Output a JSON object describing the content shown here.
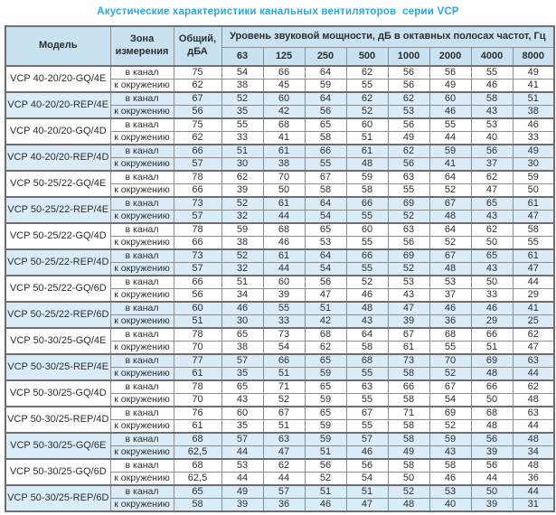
{
  "title": "Акустические характеристики канальных вентиляторов  серии VCP",
  "colors": {
    "title_text": "#29a8df",
    "header_bg": "#c8e2f2",
    "shaded_row_bg": "#d9ecf8",
    "border": "#6e6e6e",
    "cell_text": "#2e2e2e"
  },
  "table": {
    "headers": {
      "model": "Модель",
      "zone": "Зона\nизмерения",
      "total": "Общий,\nдБА",
      "octave": "Уровень звуковой мощности, дБ в октавных полосах частот, Гц",
      "frequencies": [
        "63",
        "125",
        "250",
        "500",
        "1000",
        "2000",
        "4000",
        "8000"
      ]
    },
    "models": [
      {
        "name": "VCP 40-20/20-GQ/4E",
        "shaded": false,
        "rows": [
          {
            "zone": "в канал",
            "total": "75",
            "levels": [
              "54",
              "66",
              "64",
              "62",
              "56",
              "56",
              "55",
              "49"
            ]
          },
          {
            "zone": "к окружению",
            "total": "62",
            "levels": [
              "38",
              "45",
              "59",
              "55",
              "56",
              "49",
              "46",
              "41"
            ]
          }
        ]
      },
      {
        "name": "VCP 40-20/20-REP/4E",
        "shaded": true,
        "rows": [
          {
            "zone": "в канал",
            "total": "67",
            "levels": [
              "52",
              "60",
              "64",
              "62",
              "62",
              "60",
              "58",
              "51"
            ]
          },
          {
            "zone": "к окружению",
            "total": "56",
            "levels": [
              "35",
              "42",
              "56",
              "52",
              "53",
              "46",
              "43",
              "38"
            ]
          }
        ]
      },
      {
        "name": "VCP 40-20/20-GQ/4D",
        "shaded": false,
        "rows": [
          {
            "zone": "в канал",
            "total": "75",
            "levels": [
              "55",
              "68",
              "65",
              "60",
              "56",
              "55",
              "53",
              "46"
            ]
          },
          {
            "zone": "к окружению",
            "total": "62",
            "levels": [
              "33",
              "41",
              "58",
              "51",
              "49",
              "44",
              "40",
              "33"
            ]
          }
        ]
      },
      {
        "name": "VCP 40-20/20-REP/4D",
        "shaded": true,
        "rows": [
          {
            "zone": "в канал",
            "total": "66",
            "levels": [
              "51",
              "61",
              "66",
              "61",
              "62",
              "59",
              "56",
              "49"
            ]
          },
          {
            "zone": "к окружению",
            "total": "57",
            "levels": [
              "30",
              "38",
              "55",
              "48",
              "56",
              "41",
              "37",
              "30"
            ]
          }
        ]
      },
      {
        "name": "VCP 50-25/22-GQ/4E",
        "shaded": false,
        "rows": [
          {
            "zone": "в канал",
            "total": "78",
            "levels": [
              "62",
              "70",
              "67",
              "59",
              "63",
              "64",
              "62",
              "59"
            ]
          },
          {
            "zone": "к окружению",
            "total": "66",
            "levels": [
              "39",
              "50",
              "58",
              "58",
              "55",
              "52",
              "47",
              "50"
            ]
          }
        ]
      },
      {
        "name": "VCP 50-25/22-REP/4E",
        "shaded": true,
        "rows": [
          {
            "zone": "в канал",
            "total": "73",
            "levels": [
              "52",
              "61",
              "64",
              "66",
              "69",
              "67",
              "65",
              "61"
            ]
          },
          {
            "zone": "к окружению",
            "total": "57",
            "levels": [
              "32",
              "44",
              "54",
              "55",
              "52",
              "48",
              "43",
              "47"
            ]
          }
        ]
      },
      {
        "name": "VCP 50-25/22-GQ/4D",
        "shaded": false,
        "rows": [
          {
            "zone": "в канал",
            "total": "78",
            "levels": [
              "59",
              "68",
              "65",
              "60",
              "63",
              "64",
              "62",
              "58"
            ]
          },
          {
            "zone": "к окружению",
            "total": "66",
            "levels": [
              "38",
              "46",
              "53",
              "55",
              "56",
              "52",
              "50",
              "55"
            ]
          }
        ]
      },
      {
        "name": "VCP 50-25/22-REP/4D",
        "shaded": true,
        "rows": [
          {
            "zone": "в канал",
            "total": "73",
            "levels": [
              "52",
              "61",
              "64",
              "66",
              "69",
              "67",
              "65",
              "61"
            ]
          },
          {
            "zone": "к окружению",
            "total": "57",
            "levels": [
              "32",
              "44",
              "54",
              "55",
              "52",
              "48",
              "43",
              "47"
            ]
          }
        ]
      },
      {
        "name": "VCP 50-25/22-GQ/6D",
        "shaded": false,
        "rows": [
          {
            "zone": "в канал",
            "total": "66",
            "levels": [
              "51",
              "60",
              "56",
              "52",
              "53",
              "53",
              "50",
              "44"
            ]
          },
          {
            "zone": "к окружению",
            "total": "56",
            "levels": [
              "34",
              "39",
              "47",
              "46",
              "43",
              "37",
              "33",
              "29"
            ]
          }
        ]
      },
      {
        "name": "VCP 50-25/22-REP/6D",
        "shaded": true,
        "rows": [
          {
            "zone": "в канал",
            "total": "60",
            "levels": [
              "46",
              "55",
              "51",
              "48",
              "47",
              "46",
              "46",
              "41"
            ]
          },
          {
            "zone": "к окружению",
            "total": "51",
            "levels": [
              "30",
              "33",
              "42",
              "43",
              "39",
              "36",
              "29",
              "25"
            ]
          }
        ]
      },
      {
        "name": "VCP 50-30/25-GQ/4E",
        "shaded": false,
        "rows": [
          {
            "zone": "в канал",
            "total": "78",
            "levels": [
              "65",
              "73",
              "68",
              "64",
              "67",
              "68",
              "66",
              "62"
            ]
          },
          {
            "zone": "к окружению",
            "total": "70",
            "levels": [
              "38",
              "54",
              "62",
              "58",
              "61",
              "55",
              "51",
              "47"
            ]
          }
        ]
      },
      {
        "name": "VCP 50-30/25-REP/4E",
        "shaded": true,
        "rows": [
          {
            "zone": "в канал",
            "total": "77",
            "levels": [
              "57",
              "66",
              "65",
              "68",
              "73",
              "70",
              "69",
              "63"
            ]
          },
          {
            "zone": "к окружению",
            "total": "61",
            "levels": [
              "35",
              "51",
              "59",
              "55",
              "58",
              "52",
              "48",
              "44"
            ]
          }
        ]
      },
      {
        "name": "VCP 50-30/25-GQ/4D",
        "shaded": false,
        "rows": [
          {
            "zone": "в канал",
            "total": "78",
            "levels": [
              "65",
              "71",
              "65",
              "63",
              "66",
              "67",
              "66",
              "62"
            ]
          },
          {
            "zone": "к окружению",
            "total": "70",
            "levels": [
              "43",
              "52",
              "59",
              "55",
              "58",
              "54",
              "50",
              "48"
            ]
          }
        ]
      },
      {
        "name": "VCP 50-30/25-REP/4D",
        "shaded": false,
        "rows": [
          {
            "zone": "в канал",
            "total": "76",
            "levels": [
              "60",
              "67",
              "65",
              "67",
              "71",
              "69",
              "68",
              "63"
            ]
          },
          {
            "zone": "к окружению",
            "total": "61",
            "levels": [
              "35",
              "51",
              "59",
              "55",
              "58",
              "52",
              "48",
              "44"
            ]
          }
        ]
      },
      {
        "name": "VCP 50-30/25-GQ/6E",
        "shaded": true,
        "rows": [
          {
            "zone": "в канал",
            "total": "68",
            "levels": [
              "57",
              "63",
              "59",
              "57",
              "58",
              "59",
              "56",
              "48"
            ]
          },
          {
            "zone": "к окружению",
            "total": "62,5",
            "levels": [
              "44",
              "47",
              "51",
              "46",
              "49",
              "43",
              "39",
              "34"
            ]
          }
        ]
      },
      {
        "name": "VCP 50-30/25-GQ/6D",
        "shaded": false,
        "rows": [
          {
            "zone": "в канал",
            "total": "68",
            "levels": [
              "53",
              "62",
              "56",
              "56",
              "58",
              "58",
              "56",
              "48"
            ]
          },
          {
            "zone": "к окружению",
            "total": "62,5",
            "levels": [
              "44",
              "44",
              "52",
              "54",
              "50",
              "46",
              "44",
              "36"
            ]
          }
        ]
      },
      {
        "name": "VCP 50-30/25-REP/6D",
        "shaded": true,
        "rows": [
          {
            "zone": "в канал",
            "total": "65",
            "levels": [
              "49",
              "57",
              "51",
              "51",
              "52",
              "53",
              "50",
              "44"
            ]
          },
          {
            "zone": "к окружению",
            "total": "58",
            "levels": [
              "39",
              "36",
              "46",
              "47",
              "48",
              "40",
              "39",
              "31"
            ]
          }
        ]
      }
    ]
  }
}
